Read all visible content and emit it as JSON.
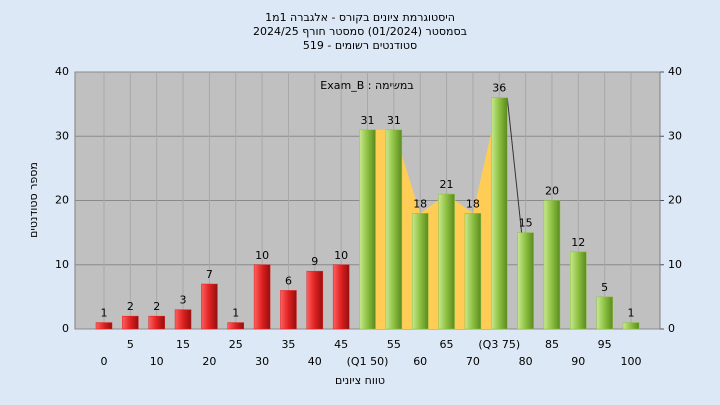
{
  "chart_data": {
    "type": "bar",
    "title": [
      "היסטוגרמת ציונים בקורס - אלגברה 1מ1",
      "בסמסטר  (01/2024)  סמסטר חורף 2024/25",
      "סטודנטים רשומים - 519"
    ],
    "annotation": "Exam_B : במשימה",
    "ylabel": "מספר סטודנטים",
    "xlabel": "טווח ציונים",
    "x": [
      0,
      5,
      10,
      15,
      20,
      25,
      30,
      35,
      40,
      45,
      50,
      55,
      60,
      65,
      70,
      75,
      80,
      85,
      90,
      95,
      100
    ],
    "xticks": [
      0,
      5,
      10,
      15,
      20,
      25,
      30,
      35,
      40,
      45,
      {
        "value": 50,
        "label": "(Q1 50)"
      },
      55,
      60,
      65,
      70,
      {
        "value": 75,
        "label": "(Q3 75)"
      },
      80,
      85,
      90,
      95,
      100
    ],
    "values": [
      1,
      2,
      2,
      3,
      7,
      1,
      10,
      6,
      9,
      10,
      31,
      31,
      18,
      21,
      18,
      36,
      15,
      20,
      12,
      5,
      1
    ],
    "fail_below": 50,
    "colors": {
      "fail": "#e02020",
      "pass": "#8cc040",
      "quartile_area": "#ffcc55"
    },
    "quartiles": [
      50,
      75
    ],
    "xlim": [
      -5.5,
      105.5
    ],
    "ylim": [
      0,
      40
    ],
    "yticks": [
      0,
      10,
      20,
      30,
      40
    ],
    "y2lim": [
      0,
      40
    ],
    "y2ticks": [
      0,
      10,
      20,
      30,
      40
    ],
    "grid": true
  }
}
